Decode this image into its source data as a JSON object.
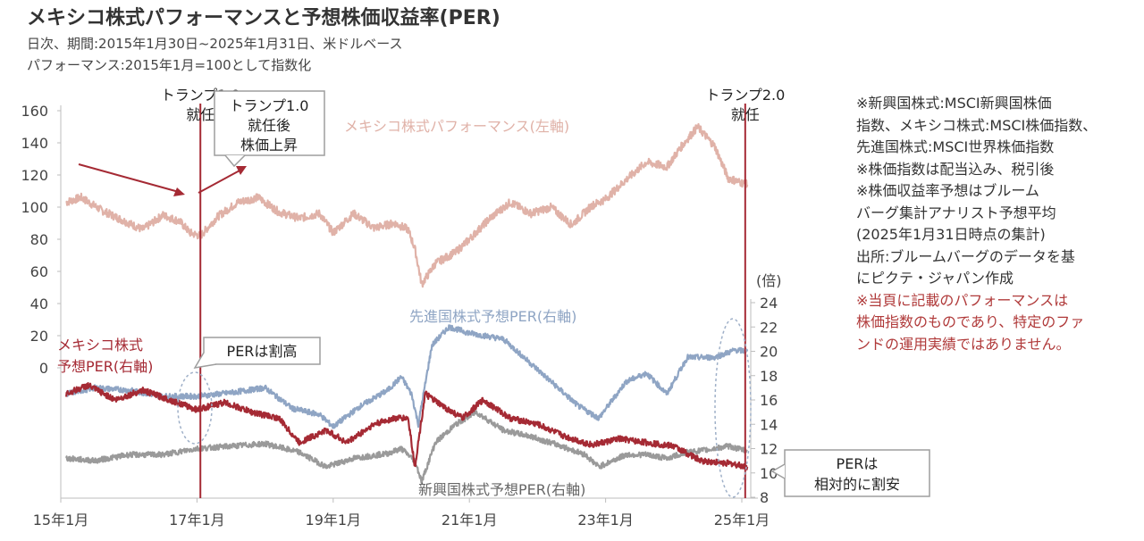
{
  "header": {
    "title": "メキシコ株式パフォーマンスと予想株価収益率(PER)",
    "subtitle1": "日次、期間:2015年1月30日~2025年1月31日、米ドルベース",
    "subtitle2": "パフォーマンス:2015年1月=100として指数化"
  },
  "notes": {
    "lines": [
      "※新興国株式:MSCI新興国株価",
      "指数、メキシコ株式:MSCI株価指数、",
      "先進国株式:MSCI世界株価指数",
      "※株価指数は配当込み、税引後",
      "※株価収益率予想はブルーム",
      "バーグ集計アナリスト予想平均",
      "(2025年1月31日時点の集計)",
      "出所:ブルームバーグのデータを基",
      "にピクテ・ジャパン作成"
    ],
    "warning": [
      "※当頁に記載のパフォーマンスは",
      "株価指数のものであり、特定のファ",
      "ンドの運用実績ではありません。"
    ]
  },
  "chart_data": {
    "type": "line",
    "title": "メキシコ株式パフォーマンスと予想株価収益率(PER)",
    "x_ticks": [
      "15年1月",
      "17年1月",
      "19年1月",
      "21年1月",
      "23年1月",
      "25年1月"
    ],
    "x_range": [
      "2015-01",
      "2025-01"
    ],
    "left_axis": {
      "ticks": [
        0,
        20,
        40,
        60,
        80,
        100,
        120,
        140,
        160
      ],
      "range": [
        0,
        160
      ]
    },
    "right_axis": {
      "unit": "(倍)",
      "ticks": [
        8,
        10,
        12,
        14,
        16,
        18,
        20,
        22,
        24
      ],
      "range": [
        8,
        24
      ]
    },
    "colors": {
      "mexico_perf": "#e0b2a8",
      "developed_per": "#8fa5c4",
      "mexico_per": "#a52a34",
      "emerging_per": "#9a9a9a",
      "event_line": "#a52a34",
      "callout_border": "#9e9e9e",
      "ellipse": "#9fb0c8"
    },
    "series": [
      {
        "name": "メキシコ株式パフォーマンス(左軸)",
        "axis": "left",
        "x": [
          2015.08,
          2015.3,
          2015.6,
          2015.9,
          2016.2,
          2016.5,
          2016.75,
          2016.9,
          2017.05,
          2017.3,
          2017.6,
          2017.9,
          2018.2,
          2018.5,
          2018.8,
          2019.0,
          2019.3,
          2019.6,
          2019.9,
          2020.1,
          2020.2,
          2020.3,
          2020.5,
          2020.8,
          2021.0,
          2021.3,
          2021.6,
          2021.9,
          2022.2,
          2022.5,
          2022.8,
          2023.0,
          2023.3,
          2023.6,
          2023.9,
          2024.1,
          2024.35,
          2024.6,
          2024.8,
          2025.08
        ],
        "values": [
          103,
          106,
          98,
          92,
          86,
          95,
          91,
          84,
          82,
          94,
          103,
          106,
          97,
          93,
          96,
          84,
          96,
          87,
          90,
          86,
          74,
          52,
          65,
          72,
          80,
          93,
          103,
          96,
          100,
          89,
          101,
          105,
          117,
          128,
          125,
          137,
          150,
          138,
          118,
          114
        ]
      },
      {
        "name": "先進国株式予想PER(右軸)",
        "axis": "right",
        "x": [
          2015.08,
          2015.5,
          2016.0,
          2016.5,
          2017.0,
          2017.5,
          2018.0,
          2018.4,
          2018.8,
          2019.0,
          2019.4,
          2019.8,
          2020.0,
          2020.15,
          2020.25,
          2020.45,
          2020.7,
          2021.0,
          2021.5,
          2021.9,
          2022.3,
          2022.6,
          2022.9,
          2023.3,
          2023.6,
          2023.9,
          2024.2,
          2024.6,
          2024.9,
          2025.08
        ],
        "values": [
          16.5,
          17.0,
          16.8,
          16.3,
          16.3,
          16.6,
          17.0,
          15.3,
          14.8,
          13.8,
          15.5,
          16.8,
          17.9,
          16.5,
          14.0,
          20.5,
          22.0,
          21.5,
          21.0,
          19.0,
          17.0,
          15.5,
          14.5,
          17.5,
          18.2,
          16.5,
          19.5,
          19.5,
          20.1,
          20.0
        ]
      },
      {
        "name": "メキシコ株式予想PER(右軸)",
        "axis": "right",
        "x": [
          2015.08,
          2015.4,
          2015.8,
          2016.2,
          2016.6,
          2017.0,
          2017.4,
          2017.8,
          2018.2,
          2018.5,
          2018.9,
          2019.2,
          2019.6,
          2019.9,
          2020.1,
          2020.2,
          2020.35,
          2020.6,
          2020.9,
          2021.2,
          2021.6,
          2022.0,
          2022.4,
          2022.8,
          2023.2,
          2023.6,
          2024.0,
          2024.4,
          2024.8,
          2025.08
        ],
        "values": [
          16.5,
          17.2,
          16.0,
          16.8,
          16.0,
          15.2,
          15.8,
          15.0,
          14.5,
          12.5,
          13.5,
          12.5,
          14.0,
          14.5,
          14.5,
          10.5,
          16.5,
          15.5,
          14.5,
          16.0,
          14.5,
          14.0,
          13.0,
          12.3,
          12.8,
          12.5,
          12.2,
          11.0,
          10.8,
          10.5
        ]
      },
      {
        "name": "新興国株式予想PER(右軸)",
        "axis": "right",
        "x": [
          2015.08,
          2015.5,
          2016.0,
          2016.5,
          2017.0,
          2017.5,
          2018.0,
          2018.5,
          2018.9,
          2019.3,
          2019.8,
          2020.0,
          2020.2,
          2020.3,
          2020.5,
          2020.8,
          2021.1,
          2021.5,
          2021.9,
          2022.3,
          2022.7,
          2022.9,
          2023.3,
          2023.6,
          2023.9,
          2024.2,
          2024.5,
          2024.8,
          2025.08
        ],
        "values": [
          11.2,
          11.0,
          11.5,
          11.5,
          12.0,
          12.2,
          12.4,
          11.7,
          10.5,
          11.2,
          11.6,
          12.0,
          11.0,
          9.3,
          12.5,
          14.0,
          15.0,
          13.5,
          13.0,
          12.3,
          11.5,
          10.5,
          11.5,
          11.5,
          11.2,
          11.7,
          11.9,
          12.2,
          11.8
        ]
      }
    ],
    "series_labels": [
      {
        "text": "メキシコ株式パフォーマンス(左軸)"
      },
      {
        "text": "先進国株式予想PER(右軸)"
      },
      {
        "text": "メキシコ株式"
      },
      {
        "text": "予想PER(右軸)"
      },
      {
        "text": "新興国株式予想PER(右軸)"
      }
    ],
    "events": [
      {
        "x": 2017.05,
        "lines": [
          "トランプ1.0",
          "就任"
        ]
      },
      {
        "x": 2025.05,
        "lines": [
          "トランプ2.0",
          "就任"
        ]
      }
    ],
    "callouts": [
      {
        "lines": [
          "トランプ1.0",
          "就任後",
          "株価上昇"
        ]
      },
      {
        "lines": [
          "PERは割高"
        ]
      },
      {
        "lines": [
          "PERは",
          "相対的に割安"
        ]
      }
    ]
  }
}
